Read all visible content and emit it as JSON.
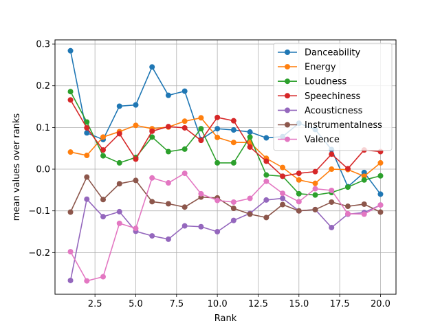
{
  "chart_data": {
    "type": "line",
    "title": "",
    "xlabel": "Rank",
    "ylabel": "mean values over ranks",
    "xlim": [
      0.05,
      20.95
    ],
    "ylim": [
      -0.3,
      0.31
    ],
    "grid": true,
    "legend_position": "top-right",
    "xticks": [
      2.5,
      5.0,
      7.5,
      10.0,
      12.5,
      15.0,
      17.5,
      20.0
    ],
    "xtick_labels": [
      "2.5",
      "5.0",
      "7.5",
      "10.0",
      "12.5",
      "15.0",
      "17.5",
      "20.0"
    ],
    "yticks": [
      -0.2,
      -0.1,
      0.0,
      0.1,
      0.2,
      0.3
    ],
    "ytick_labels": [
      "−0.2",
      "−0.1",
      "0.0",
      "0.1",
      "0.2",
      "0.3"
    ],
    "x": [
      1,
      2,
      3,
      4,
      5,
      6,
      7,
      8,
      9,
      10,
      11,
      12,
      13,
      14,
      15,
      16,
      17,
      18,
      19,
      20
    ],
    "series": [
      {
        "name": "Danceability",
        "color": "#1f77b4",
        "values": [
          0.284,
          0.087,
          0.071,
          0.151,
          0.154,
          0.245,
          0.177,
          0.187,
          0.071,
          0.097,
          0.094,
          0.089,
          0.075,
          0.078,
          0.11,
          0.095,
          0.047,
          -0.042,
          -0.008,
          -0.06
        ]
      },
      {
        "name": "Energy",
        "color": "#ff7f0e",
        "values": [
          0.041,
          0.033,
          0.077,
          0.09,
          0.105,
          0.097,
          0.101,
          0.115,
          0.123,
          0.076,
          0.064,
          0.064,
          0.026,
          0.004,
          -0.026,
          -0.034,
          0.0,
          -0.001,
          -0.017,
          0.015
        ]
      },
      {
        "name": "Loudness",
        "color": "#2ca02c",
        "values": [
          0.186,
          0.113,
          0.032,
          0.015,
          0.028,
          0.077,
          0.042,
          0.048,
          0.097,
          0.015,
          0.015,
          0.077,
          -0.014,
          -0.017,
          -0.059,
          -0.062,
          -0.056,
          -0.043,
          -0.026,
          -0.016
        ]
      },
      {
        "name": "Speechiness",
        "color": "#d62728",
        "values": [
          0.166,
          0.099,
          0.046,
          0.085,
          0.024,
          0.091,
          0.102,
          0.099,
          0.069,
          0.124,
          0.116,
          0.053,
          0.019,
          -0.017,
          -0.01,
          -0.006,
          0.036,
          0.001,
          0.046,
          0.042
        ]
      },
      {
        "name": "Acousticness",
        "color": "#9467bd",
        "values": [
          -0.267,
          -0.072,
          -0.114,
          -0.102,
          -0.149,
          -0.16,
          -0.168,
          -0.136,
          -0.138,
          -0.15,
          -0.123,
          -0.106,
          -0.074,
          -0.07,
          -0.1,
          -0.097,
          -0.14,
          -0.108,
          -0.104,
          -0.086
        ]
      },
      {
        "name": "Instrumentalness",
        "color": "#8c564b",
        "values": [
          -0.103,
          -0.019,
          -0.073,
          -0.035,
          -0.027,
          -0.078,
          -0.083,
          -0.091,
          -0.067,
          -0.069,
          -0.094,
          -0.108,
          -0.116,
          -0.085,
          -0.1,
          -0.097,
          -0.079,
          -0.089,
          -0.084,
          -0.103
        ]
      },
      {
        "name": "Valence",
        "color": "#e377c2",
        "values": [
          -0.198,
          -0.268,
          -0.258,
          -0.13,
          -0.142,
          -0.021,
          -0.033,
          -0.01,
          -0.059,
          -0.075,
          -0.079,
          -0.07,
          -0.029,
          -0.058,
          -0.078,
          -0.047,
          -0.051,
          -0.107,
          -0.108,
          -0.086
        ]
      }
    ]
  }
}
